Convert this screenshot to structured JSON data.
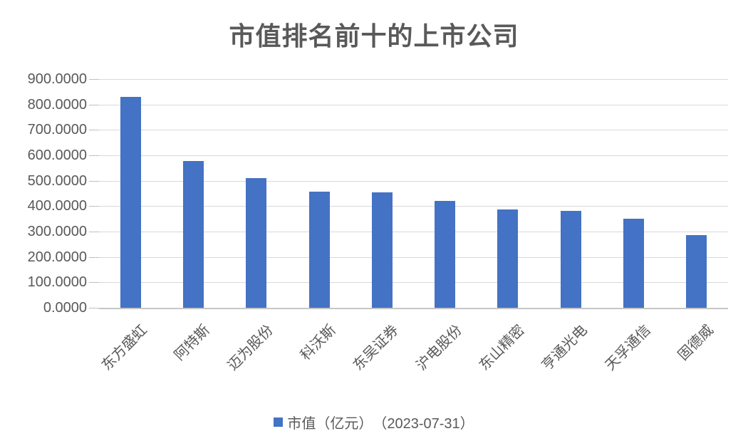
{
  "chart_data": {
    "type": "bar",
    "title": "市值排名前十的上市公司",
    "categories": [
      "东方盛虹",
      "阿特斯",
      "迈为股份",
      "科沃斯",
      "东吴证券",
      "沪电股份",
      "东山精密",
      "亨通光电",
      "天孚通信",
      "固德威"
    ],
    "series": [
      {
        "name": "市值（亿元）　（2023-07-31）",
        "values": [
          829,
          578,
          511,
          456,
          455,
          421,
          386,
          381,
          350,
          285
        ]
      }
    ],
    "xlabel": "",
    "ylabel": "",
    "ylim": [
      0,
      900
    ],
    "ytick_step": 100,
    "ytick_labels": [
      "0.0000",
      "100.0000",
      "200.0000",
      "300.0000",
      "400.0000",
      "500.0000",
      "600.0000",
      "700.0000",
      "800.0000",
      "900.0000"
    ],
    "grid": true,
    "legend": {
      "label": "市值（亿元）　（2023-07-31）",
      "position": "bottom",
      "marker_color": "#4472C4"
    },
    "colors": {
      "bar": "#4472C4",
      "text": "#595959",
      "gridline": "#D9D9D9",
      "axis": "#C6C6C6",
      "background": "#FFFFFF"
    }
  }
}
